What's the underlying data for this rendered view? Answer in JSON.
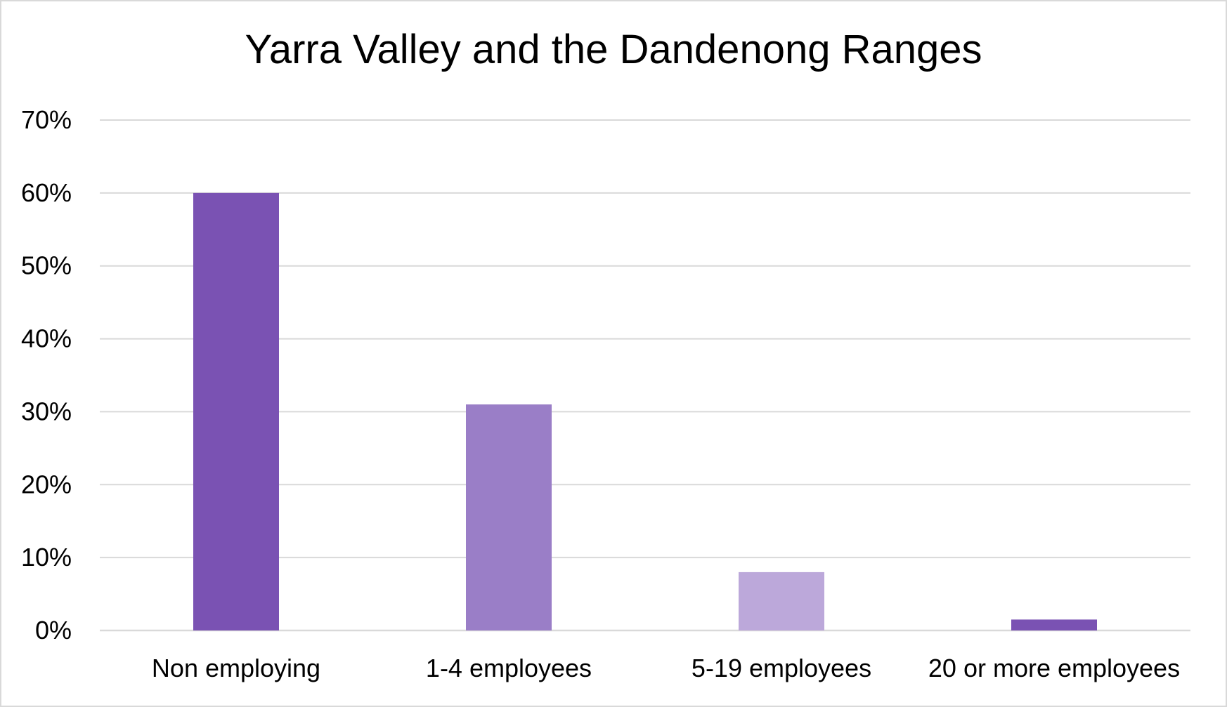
{
  "chart_data": {
    "type": "bar",
    "title": "Yarra Valley and the Dandenong Ranges",
    "categories": [
      "Non employing",
      "1-4 employees",
      "5-19 employees",
      "20 or more employees"
    ],
    "values": [
      60,
      31,
      8,
      1.5
    ],
    "bar_colors": [
      "#7a52b3",
      "#9a7ec7",
      "#bca8da",
      "#7a52b3"
    ],
    "ylim": [
      0,
      70
    ],
    "yticks": [
      0,
      10,
      20,
      30,
      40,
      50,
      60,
      70
    ],
    "ytick_labels": [
      "0%",
      "10%",
      "20%",
      "30%",
      "40%",
      "50%",
      "60%",
      "70%"
    ],
    "grid": true,
    "gridline_color": "#d9d9d9",
    "xlabel": "",
    "ylabel": ""
  }
}
